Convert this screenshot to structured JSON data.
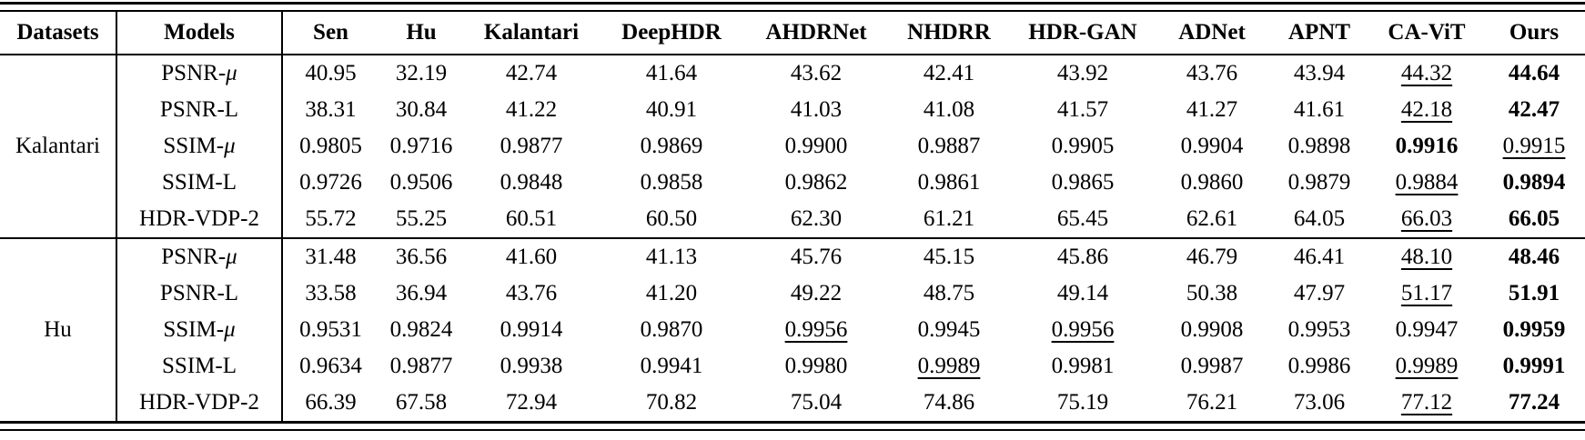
{
  "table": {
    "header": {
      "dataset_col": "Datasets",
      "models_col": "Models",
      "method_cols": [
        "Sen",
        "Hu",
        "Kalantari",
        "DeepHDR",
        "AHDRNet",
        "NHDRR",
        "HDR-GAN",
        "ADNet",
        "APNT",
        "CA-ViT",
        "Ours"
      ]
    },
    "groups": [
      {
        "dataset": "Kalantari",
        "rows": [
          {
            "metric": "PSNR-μ",
            "values": [
              "40.95",
              "32.19",
              "42.74",
              "41.64",
              "43.62",
              "42.41",
              "43.92",
              "43.76",
              "43.94",
              "44.32",
              "44.64"
            ],
            "fmt": [
              "",
              "",
              "",
              "",
              "",
              "",
              "",
              "",
              "",
              "u",
              "b"
            ]
          },
          {
            "metric": "PSNR-L",
            "values": [
              "38.31",
              "30.84",
              "41.22",
              "40.91",
              "41.03",
              "41.08",
              "41.57",
              "41.27",
              "41.61",
              "42.18",
              "42.47"
            ],
            "fmt": [
              "",
              "",
              "",
              "",
              "",
              "",
              "",
              "",
              "",
              "u",
              "b"
            ]
          },
          {
            "metric": "SSIM-μ",
            "values": [
              "0.9805",
              "0.9716",
              "0.9877",
              "0.9869",
              "0.9900",
              "0.9887",
              "0.9905",
              "0.9904",
              "0.9898",
              "0.9916",
              "0.9915"
            ],
            "fmt": [
              "",
              "",
              "",
              "",
              "",
              "",
              "",
              "",
              "",
              "b",
              "u"
            ]
          },
          {
            "metric": "SSIM-L",
            "values": [
              "0.9726",
              "0.9506",
              "0.9848",
              "0.9858",
              "0.9862",
              "0.9861",
              "0.9865",
              "0.9860",
              "0.9879",
              "0.9884",
              "0.9894"
            ],
            "fmt": [
              "",
              "",
              "",
              "",
              "",
              "",
              "",
              "",
              "",
              "u",
              "b"
            ]
          },
          {
            "metric": "HDR-VDP-2",
            "values": [
              "55.72",
              "55.25",
              "60.51",
              "60.50",
              "62.30",
              "61.21",
              "65.45",
              "62.61",
              "64.05",
              "66.03",
              "66.05"
            ],
            "fmt": [
              "",
              "",
              "",
              "",
              "",
              "",
              "",
              "",
              "",
              "u",
              "b"
            ]
          }
        ]
      },
      {
        "dataset": "Hu",
        "rows": [
          {
            "metric": "PSNR-μ",
            "values": [
              "31.48",
              "36.56",
              "41.60",
              "41.13",
              "45.76",
              "45.15",
              "45.86",
              "46.79",
              "46.41",
              "48.10",
              "48.46"
            ],
            "fmt": [
              "",
              "",
              "",
              "",
              "",
              "",
              "",
              "",
              "",
              "u",
              "b"
            ]
          },
          {
            "metric": "PSNR-L",
            "values": [
              "33.58",
              "36.94",
              "43.76",
              "41.20",
              "49.22",
              "48.75",
              "49.14",
              "50.38",
              "47.97",
              "51.17",
              "51.91"
            ],
            "fmt": [
              "",
              "",
              "",
              "",
              "",
              "",
              "",
              "",
              "",
              "u",
              "b"
            ]
          },
          {
            "metric": "SSIM-μ",
            "values": [
              "0.9531",
              "0.9824",
              "0.9914",
              "0.9870",
              "0.9956",
              "0.9945",
              "0.9956",
              "0.9908",
              "0.9953",
              "0.9947",
              "0.9959"
            ],
            "fmt": [
              "",
              "",
              "",
              "",
              "u",
              "",
              "u",
              "",
              "",
              "",
              "b"
            ]
          },
          {
            "metric": "SSIM-L",
            "values": [
              "0.9634",
              "0.9877",
              "0.9938",
              "0.9941",
              "0.9980",
              "0.9989",
              "0.9981",
              "0.9987",
              "0.9986",
              "0.9989",
              "0.9991"
            ],
            "fmt": [
              "",
              "",
              "",
              "",
              "",
              "u",
              "",
              "",
              "",
              "u",
              "b"
            ]
          },
          {
            "metric": "HDR-VDP-2",
            "values": [
              "66.39",
              "67.58",
              "72.94",
              "70.82",
              "75.04",
              "74.86",
              "75.19",
              "76.21",
              "73.06",
              "77.12",
              "77.24"
            ],
            "fmt": [
              "",
              "",
              "",
              "",
              "",
              "",
              "",
              "",
              "",
              "u",
              "b"
            ]
          }
        ]
      }
    ]
  }
}
